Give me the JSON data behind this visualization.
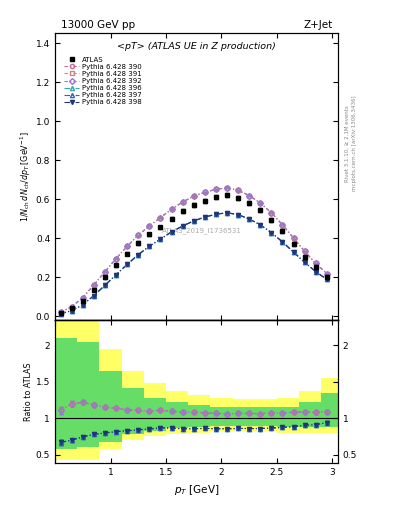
{
  "title_top": "13000 GeV pp",
  "title_right": "Z+Jet",
  "plot_title": "<pT> (ATLAS UE in Z production)",
  "ylabel_top": "$1/N_{ch}\\, dN_{ch}/dp_T$ [GeV$^{-1}$]",
  "ylabel_bottom": "Ratio to ATLAS",
  "watermark": "ATLAS_2019_I1736531",
  "right_label1": "Rivet 3.1.10, ≥ 2.1M events",
  "right_label2": "mcplots.cern.ch [arXiv:1306.3436]",
  "pt_values": [
    0.55,
    0.65,
    0.75,
    0.85,
    0.95,
    1.05,
    1.15,
    1.25,
    1.35,
    1.45,
    1.55,
    1.65,
    1.75,
    1.85,
    1.95,
    2.05,
    2.15,
    2.25,
    2.35,
    2.45,
    2.55,
    2.65,
    2.75,
    2.85,
    2.95
  ],
  "atlas_y": [
    0.018,
    0.04,
    0.078,
    0.135,
    0.198,
    0.26,
    0.32,
    0.375,
    0.42,
    0.455,
    0.5,
    0.54,
    0.57,
    0.59,
    0.61,
    0.62,
    0.605,
    0.58,
    0.545,
    0.495,
    0.435,
    0.37,
    0.305,
    0.25,
    0.2
  ],
  "atlas_yerr": [
    0.002,
    0.003,
    0.004,
    0.005,
    0.006,
    0.007,
    0.007,
    0.008,
    0.008,
    0.008,
    0.009,
    0.009,
    0.009,
    0.009,
    0.01,
    0.01,
    0.01,
    0.01,
    0.01,
    0.01,
    0.01,
    0.01,
    0.01,
    0.01,
    0.01
  ],
  "series": [
    {
      "label": "Pythia 6.428 390",
      "color": "#cc6699",
      "marker": "o",
      "markerfacecolor": "none",
      "y": [
        0.02,
        0.048,
        0.095,
        0.16,
        0.228,
        0.295,
        0.358,
        0.415,
        0.462,
        0.505,
        0.548,
        0.585,
        0.615,
        0.635,
        0.65,
        0.658,
        0.645,
        0.618,
        0.58,
        0.53,
        0.468,
        0.4,
        0.332,
        0.27,
        0.218
      ]
    },
    {
      "label": "Pythia 6.428 391",
      "color": "#cc8877",
      "marker": "s",
      "markerfacecolor": "none",
      "y": [
        0.02,
        0.048,
        0.095,
        0.16,
        0.228,
        0.295,
        0.358,
        0.415,
        0.462,
        0.505,
        0.548,
        0.585,
        0.615,
        0.635,
        0.65,
        0.658,
        0.645,
        0.618,
        0.58,
        0.53,
        0.468,
        0.4,
        0.332,
        0.27,
        0.218
      ]
    },
    {
      "label": "Pythia 6.428 392",
      "color": "#9977cc",
      "marker": "D",
      "markerfacecolor": "none",
      "y": [
        0.02,
        0.048,
        0.095,
        0.16,
        0.228,
        0.295,
        0.358,
        0.415,
        0.462,
        0.505,
        0.548,
        0.585,
        0.615,
        0.635,
        0.65,
        0.658,
        0.645,
        0.618,
        0.58,
        0.53,
        0.468,
        0.4,
        0.332,
        0.27,
        0.218
      ]
    },
    {
      "label": "Pythia 6.428 396",
      "color": "#33aaaa",
      "marker": "^",
      "markerfacecolor": "none",
      "y": [
        0.012,
        0.028,
        0.058,
        0.105,
        0.158,
        0.212,
        0.265,
        0.315,
        0.358,
        0.395,
        0.432,
        0.462,
        0.488,
        0.508,
        0.522,
        0.53,
        0.52,
        0.498,
        0.468,
        0.428,
        0.38,
        0.328,
        0.275,
        0.228,
        0.188
      ]
    },
    {
      "label": "Pythia 6.428 397",
      "color": "#3366bb",
      "marker": "^",
      "markerfacecolor": "none",
      "y": [
        0.012,
        0.028,
        0.058,
        0.105,
        0.158,
        0.212,
        0.265,
        0.315,
        0.358,
        0.395,
        0.432,
        0.462,
        0.488,
        0.508,
        0.522,
        0.53,
        0.52,
        0.498,
        0.468,
        0.428,
        0.38,
        0.328,
        0.275,
        0.228,
        0.188
      ]
    },
    {
      "label": "Pythia 6.428 398",
      "color": "#223377",
      "marker": "v",
      "markerfacecolor": "#223377",
      "y": [
        0.012,
        0.028,
        0.058,
        0.105,
        0.158,
        0.212,
        0.265,
        0.315,
        0.358,
        0.395,
        0.432,
        0.462,
        0.488,
        0.508,
        0.522,
        0.53,
        0.52,
        0.498,
        0.468,
        0.428,
        0.38,
        0.328,
        0.275,
        0.228,
        0.188
      ]
    }
  ],
  "yellow_band_xedges": [
    0.5,
    0.7,
    0.9,
    1.1,
    1.3,
    1.5,
    1.7,
    1.9,
    2.1,
    2.3,
    2.5,
    2.7,
    2.9,
    3.1
  ],
  "yellow_band_low": [
    0.42,
    0.43,
    0.58,
    0.7,
    0.76,
    0.79,
    0.8,
    0.82,
    0.82,
    0.82,
    0.8,
    0.8,
    0.8,
    0.8
  ],
  "yellow_band_high": [
    2.5,
    2.45,
    1.95,
    1.65,
    1.48,
    1.38,
    1.32,
    1.28,
    1.26,
    1.26,
    1.28,
    1.38,
    1.55,
    1.55
  ],
  "green_band_xedges": [
    0.5,
    0.7,
    0.9,
    1.1,
    1.3,
    1.5,
    1.7,
    1.9,
    2.1,
    2.3,
    2.5,
    2.7,
    2.9,
    3.1
  ],
  "green_band_low": [
    0.58,
    0.6,
    0.68,
    0.78,
    0.83,
    0.86,
    0.88,
    0.89,
    0.89,
    0.89,
    0.88,
    0.88,
    0.88,
    0.88
  ],
  "green_band_high": [
    2.1,
    2.05,
    1.65,
    1.42,
    1.28,
    1.22,
    1.18,
    1.16,
    1.15,
    1.15,
    1.16,
    1.22,
    1.35,
    1.35
  ],
  "main_ylim": [
    -0.02,
    1.45
  ],
  "main_yticks": [
    0.0,
    0.2,
    0.4,
    0.6,
    0.8,
    1.0,
    1.2,
    1.4
  ],
  "ratio_ylim": [
    0.38,
    2.35
  ],
  "ratio_yticks": [
    0.5,
    1.0,
    1.5,
    2.0
  ],
  "xlim": [
    0.5,
    3.05
  ],
  "xticks": [
    0.5,
    1.0,
    1.5,
    2.0,
    2.5,
    3.0
  ]
}
